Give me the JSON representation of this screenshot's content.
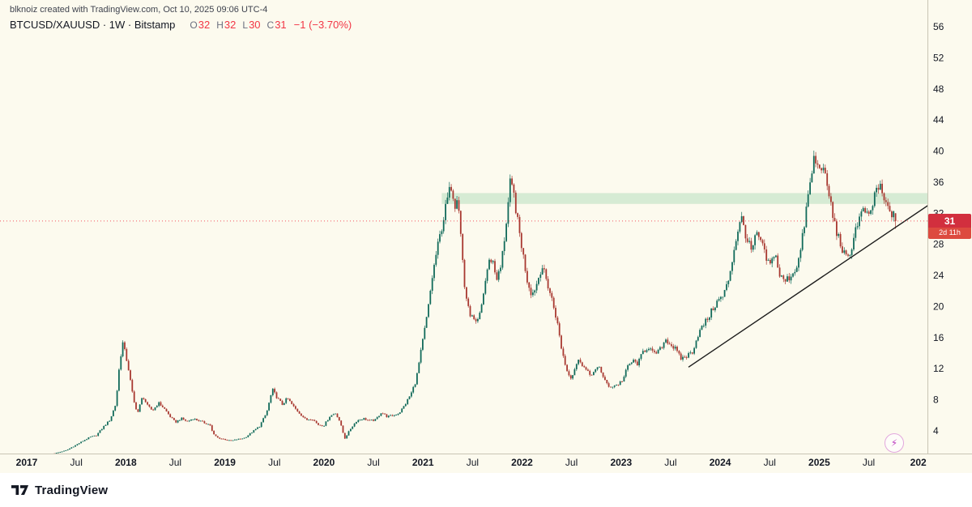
{
  "watermark": "blknoiz created with TradingView.com, Oct 10, 2025 09:06 UTC-4",
  "legend": {
    "title": "BTCUSD/XAUUSD · 1W · Bitstamp",
    "ohlc": [
      {
        "label": "O",
        "value": "32"
      },
      {
        "label": "H",
        "value": "32"
      },
      {
        "label": "L",
        "value": "30"
      },
      {
        "label": "C",
        "value": "31"
      }
    ],
    "change": "−1 (−3.70%)"
  },
  "price_label": {
    "value": "31",
    "countdown": "2d 11h"
  },
  "footer": {
    "brand": "TradingView"
  },
  "icons": {
    "lightning": "⚡"
  },
  "colors": {
    "background": "#fcfaee",
    "up": "#116a5a",
    "down": "#a83830",
    "axis_text": "#131722",
    "axis_line": "#c9c5b4",
    "zone_fill": "#b6dfbf",
    "trendline": "#1b1b1b",
    "price_line": "#f23645"
  },
  "chart_data": {
    "type": "candlestick",
    "symbol": "BTCUSD/XAUUSD",
    "interval": "1W",
    "exchange": "Bitstamp",
    "last_candle": {
      "open": 32,
      "high": 32,
      "low": 30,
      "close": 31,
      "change_abs": "−1",
      "change_pct": "−3.70%"
    },
    "current_price_line": 31,
    "ylim": [
      1,
      56
    ],
    "y_ticks": [
      4,
      8,
      12,
      16,
      20,
      24,
      28,
      32,
      36,
      40,
      44,
      48,
      52,
      56
    ],
    "x_ticks": [
      {
        "t": 2017,
        "label": "2017"
      },
      {
        "t": 2017.5,
        "label": "Jul"
      },
      {
        "t": 2018,
        "label": "2018"
      },
      {
        "t": 2018.5,
        "label": "Jul"
      },
      {
        "t": 2019,
        "label": "2019"
      },
      {
        "t": 2019.5,
        "label": "Jul"
      },
      {
        "t": 2020,
        "label": "2020"
      },
      {
        "t": 2020.5,
        "label": "Jul"
      },
      {
        "t": 2021,
        "label": "2021"
      },
      {
        "t": 2021.5,
        "label": "Jul"
      },
      {
        "t": 2022,
        "label": "2022"
      },
      {
        "t": 2022.5,
        "label": "Jul"
      },
      {
        "t": 2023,
        "label": "2023"
      },
      {
        "t": 2023.5,
        "label": "Jul"
      },
      {
        "t": 2024,
        "label": "2024"
      },
      {
        "t": 2024.5,
        "label": "Jul"
      },
      {
        "t": 2025,
        "label": "2025"
      },
      {
        "t": 2025.5,
        "label": "Jul"
      },
      {
        "t": 2026,
        "label": "202"
      }
    ],
    "supply_zone": {
      "t_start": 2021.19,
      "t_end": 2026.2,
      "price_low": 33.2,
      "price_high": 34.6
    },
    "trendline": {
      "t1": 2023.68,
      "p1": 12.2,
      "t2": 2026.12,
      "p2": 33.2
    },
    "close_path": [
      [
        2017.28,
        1.1
      ],
      [
        2017.4,
        1.5
      ],
      [
        2017.5,
        2.2
      ],
      [
        2017.58,
        2.8
      ],
      [
        2017.64,
        3.2
      ],
      [
        2017.7,
        3.4
      ],
      [
        2017.78,
        4.6
      ],
      [
        2017.84,
        5.4
      ],
      [
        2017.9,
        7.5
      ],
      [
        2017.94,
        13.0
      ],
      [
        2017.97,
        15.3
      ],
      [
        2018.02,
        12.5
      ],
      [
        2018.08,
        7.8
      ],
      [
        2018.12,
        6.3
      ],
      [
        2018.17,
        8.5
      ],
      [
        2018.22,
        7.2
      ],
      [
        2018.27,
        6.6
      ],
      [
        2018.33,
        7.6
      ],
      [
        2018.38,
        7.0
      ],
      [
        2018.45,
        5.8
      ],
      [
        2018.5,
        5.1
      ],
      [
        2018.56,
        5.6
      ],
      [
        2018.62,
        5.2
      ],
      [
        2018.68,
        5.6
      ],
      [
        2018.74,
        5.3
      ],
      [
        2018.8,
        5.0
      ],
      [
        2018.85,
        4.8
      ],
      [
        2018.88,
        3.6
      ],
      [
        2018.93,
        3.1
      ],
      [
        2019.0,
        2.9
      ],
      [
        2019.06,
        2.7
      ],
      [
        2019.12,
        2.9
      ],
      [
        2019.2,
        3.1
      ],
      [
        2019.28,
        3.9
      ],
      [
        2019.35,
        4.6
      ],
      [
        2019.42,
        6.3
      ],
      [
        2019.48,
        9.3
      ],
      [
        2019.53,
        8.2
      ],
      [
        2019.58,
        7.4
      ],
      [
        2019.63,
        8.2
      ],
      [
        2019.7,
        7.0
      ],
      [
        2019.76,
        6.2
      ],
      [
        2019.82,
        5.4
      ],
      [
        2019.88,
        5.6
      ],
      [
        2019.94,
        4.8
      ],
      [
        2020.0,
        4.7
      ],
      [
        2020.06,
        5.9
      ],
      [
        2020.12,
        6.3
      ],
      [
        2020.16,
        5.2
      ],
      [
        2020.21,
        3.0
      ],
      [
        2020.27,
        4.3
      ],
      [
        2020.33,
        5.3
      ],
      [
        2020.4,
        5.6
      ],
      [
        2020.46,
        5.3
      ],
      [
        2020.52,
        5.4
      ],
      [
        2020.58,
        6.4
      ],
      [
        2020.64,
        5.8
      ],
      [
        2020.7,
        6.0
      ],
      [
        2020.76,
        6.3
      ],
      [
        2020.82,
        7.4
      ],
      [
        2020.88,
        8.8
      ],
      [
        2020.93,
        10.5
      ],
      [
        2020.97,
        13.5
      ],
      [
        2021.01,
        16.5
      ],
      [
        2021.05,
        19.5
      ],
      [
        2021.09,
        23.5
      ],
      [
        2021.13,
        26.5
      ],
      [
        2021.17,
        29.0
      ],
      [
        2021.21,
        31.5
      ],
      [
        2021.25,
        34.0
      ],
      [
        2021.29,
        35.8
      ],
      [
        2021.32,
        33.0
      ],
      [
        2021.35,
        34.8
      ],
      [
        2021.38,
        29.5
      ],
      [
        2021.42,
        22.5
      ],
      [
        2021.46,
        19.5
      ],
      [
        2021.5,
        18.5
      ],
      [
        2021.54,
        17.6
      ],
      [
        2021.58,
        19.2
      ],
      [
        2021.62,
        22.5
      ],
      [
        2021.66,
        25.6
      ],
      [
        2021.7,
        26.2
      ],
      [
        2021.74,
        23.6
      ],
      [
        2021.78,
        24.6
      ],
      [
        2021.82,
        28.5
      ],
      [
        2021.85,
        32.0
      ],
      [
        2021.88,
        35.8
      ],
      [
        2021.92,
        34.2
      ],
      [
        2021.96,
        30.5
      ],
      [
        2022.0,
        27.5
      ],
      [
        2022.05,
        23.5
      ],
      [
        2022.1,
        21.5
      ],
      [
        2022.15,
        23.0
      ],
      [
        2022.2,
        25.3
      ],
      [
        2022.25,
        23.2
      ],
      [
        2022.3,
        21.0
      ],
      [
        2022.35,
        18.3
      ],
      [
        2022.4,
        14.5
      ],
      [
        2022.45,
        11.8
      ],
      [
        2022.5,
        10.8
      ],
      [
        2022.54,
        12.4
      ],
      [
        2022.58,
        13.2
      ],
      [
        2022.63,
        12.1
      ],
      [
        2022.68,
        11.2
      ],
      [
        2022.73,
        11.6
      ],
      [
        2022.78,
        12.2
      ],
      [
        2022.83,
        10.7
      ],
      [
        2022.87,
        9.6
      ],
      [
        2022.92,
        9.8
      ],
      [
        2022.97,
        10.0
      ],
      [
        2023.02,
        10.6
      ],
      [
        2023.07,
        12.4
      ],
      [
        2023.12,
        13.0
      ],
      [
        2023.17,
        12.6
      ],
      [
        2023.22,
        14.2
      ],
      [
        2023.28,
        14.8
      ],
      [
        2023.33,
        13.8
      ],
      [
        2023.39,
        14.4
      ],
      [
        2023.45,
        15.8
      ],
      [
        2023.5,
        15.1
      ],
      [
        2023.55,
        14.5
      ],
      [
        2023.6,
        13.3
      ],
      [
        2023.66,
        13.6
      ],
      [
        2023.72,
        14.2
      ],
      [
        2023.78,
        16.5
      ],
      [
        2023.83,
        17.6
      ],
      [
        2023.88,
        18.6
      ],
      [
        2023.93,
        19.8
      ],
      [
        2023.98,
        20.8
      ],
      [
        2024.03,
        21.3
      ],
      [
        2024.08,
        23.2
      ],
      [
        2024.13,
        26.6
      ],
      [
        2024.18,
        30.0
      ],
      [
        2024.22,
        31.3
      ],
      [
        2024.27,
        28.6
      ],
      [
        2024.32,
        27.0
      ],
      [
        2024.36,
        29.2
      ],
      [
        2024.41,
        28.5
      ],
      [
        2024.46,
        26.2
      ],
      [
        2024.51,
        25.2
      ],
      [
        2024.55,
        27.2
      ],
      [
        2024.6,
        24.0
      ],
      [
        2024.65,
        23.2
      ],
      [
        2024.7,
        23.8
      ],
      [
        2024.75,
        24.6
      ],
      [
        2024.8,
        26.3
      ],
      [
        2024.84,
        29.6
      ],
      [
        2024.88,
        33.6
      ],
      [
        2024.92,
        36.6
      ],
      [
        2024.95,
        39.4
      ],
      [
        2024.98,
        37.8
      ],
      [
        2025.02,
        38.4
      ],
      [
        2025.06,
        36.4
      ],
      [
        2025.1,
        34.4
      ],
      [
        2025.14,
        31.4
      ],
      [
        2025.18,
        29.4
      ],
      [
        2025.22,
        27.8
      ],
      [
        2025.26,
        26.4
      ],
      [
        2025.3,
        26.0
      ],
      [
        2025.34,
        28.6
      ],
      [
        2025.38,
        30.6
      ],
      [
        2025.42,
        31.8
      ],
      [
        2025.46,
        32.4
      ],
      [
        2025.5,
        31.2
      ],
      [
        2025.54,
        33.2
      ],
      [
        2025.58,
        35.4
      ],
      [
        2025.62,
        35.0
      ],
      [
        2025.66,
        33.4
      ],
      [
        2025.7,
        32.4
      ],
      [
        2025.74,
        32.0
      ],
      [
        2025.77,
        31.0
      ]
    ]
  }
}
